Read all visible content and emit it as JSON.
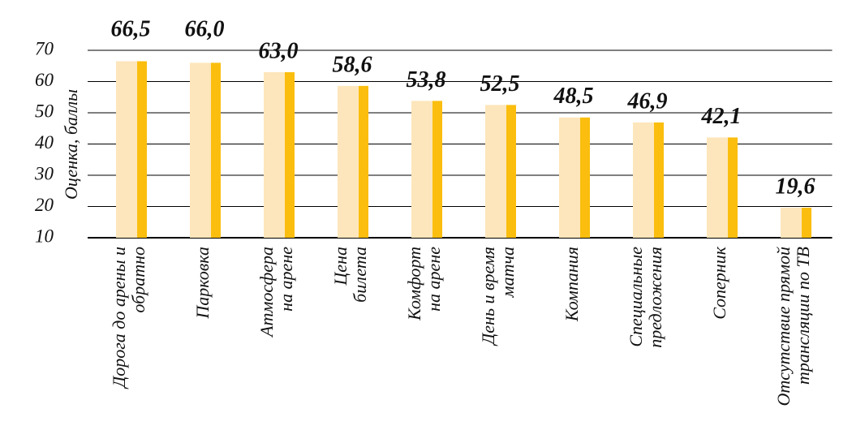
{
  "chart_data": {
    "type": "bar",
    "y_label": "Оценка, баллы",
    "categories": [
      [
        "Дорога до арены и",
        "обратно"
      ],
      [
        "Парковка"
      ],
      [
        "Атмосфера",
        "на арене"
      ],
      [
        "Цена",
        "билета"
      ],
      [
        "Комфорт",
        "на арене"
      ],
      [
        "День и время",
        "матча"
      ],
      [
        "Компания"
      ],
      [
        "Специальные",
        "предложения"
      ],
      [
        "Соперник"
      ],
      [
        "Отсутствие прямой",
        "трансляции по ТВ"
      ]
    ],
    "values": [
      66.5,
      66.0,
      63.0,
      58.6,
      53.8,
      52.5,
      48.5,
      46.9,
      42.1,
      19.6
    ],
    "value_labels": [
      "66,5",
      "66,0",
      "63,0",
      "58,6",
      "53,8",
      "52,5",
      "48,5",
      "46,9",
      "42,1",
      "19,6"
    ],
    "colors": [
      "#fde6bb",
      "#fbbe0f"
    ],
    "ylim": [
      10,
      70
    ],
    "yticks": [
      10,
      20,
      30,
      40,
      50,
      60,
      70
    ],
    "grid": true
  }
}
